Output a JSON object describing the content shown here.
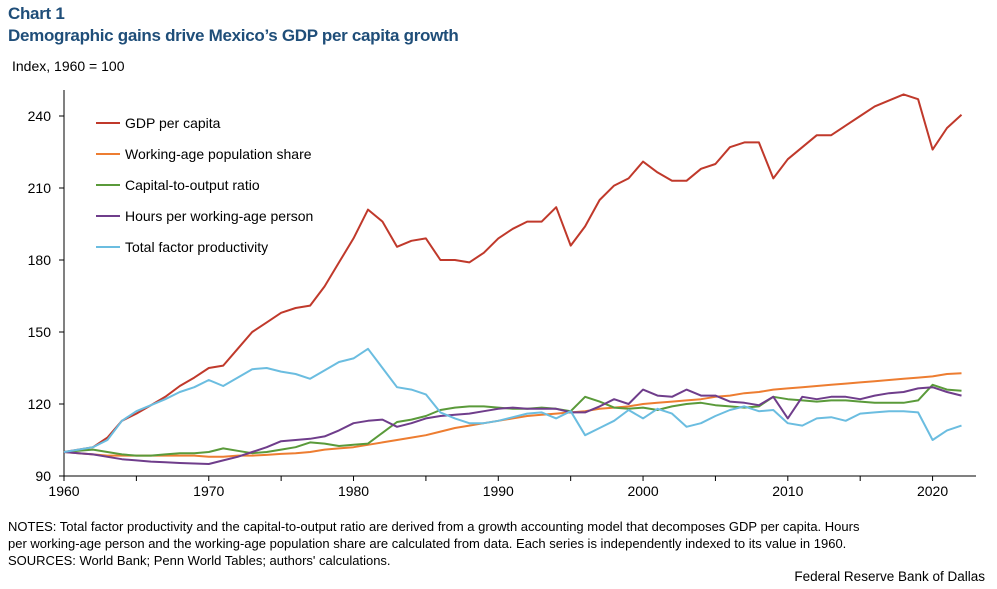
{
  "header": {
    "chart_number": "Chart 1",
    "title": "Demographic gains drive Mexico’s GDP per capita growth",
    "y_unit": "Index,  1960 = 100"
  },
  "footer": {
    "notes_line1": "NOTES: Total factor productivity and the capital-to-output ratio are derived from a growth accounting model that decomposes GDP per capita. Hours",
    "notes_line2": "per working-age person and the working-age population share are calculated from data. Each series is independently indexed to its value in 1960.",
    "sources": "SOURCES: World Bank; Penn World Tables; authors' calculations.",
    "credit": "Federal Reserve Bank of Dallas"
  },
  "chart_data": {
    "type": "line",
    "title": "Demographic gains drive Mexico’s GDP per capita growth",
    "xlabel": "",
    "ylabel": "Index,  1960 = 100",
    "xlim": [
      1960,
      2023
    ],
    "ylim": [
      90,
      250
    ],
    "x_ticks": [
      1960,
      1970,
      1980,
      1990,
      2000,
      2010,
      2020
    ],
    "y_ticks": [
      90,
      120,
      150,
      180,
      210,
      240
    ],
    "legend_position": "top-left",
    "x": [
      1960,
      1961,
      1962,
      1963,
      1964,
      1965,
      1966,
      1967,
      1968,
      1969,
      1970,
      1971,
      1972,
      1973,
      1974,
      1975,
      1976,
      1977,
      1978,
      1979,
      1980,
      1981,
      1982,
      1983,
      1984,
      1985,
      1986,
      1987,
      1988,
      1989,
      1990,
      1991,
      1992,
      1993,
      1994,
      1995,
      1996,
      1997,
      1998,
      1999,
      2000,
      2001,
      2002,
      2003,
      2004,
      2005,
      2006,
      2007,
      2008,
      2009,
      2010,
      2011,
      2012,
      2013,
      2014,
      2015,
      2016,
      2017,
      2018,
      2019,
      2020,
      2021,
      2022
    ],
    "series": [
      {
        "name": "GDP per capita",
        "color": "#c0392b",
        "values": [
          100,
          101,
          102,
          106,
          113,
          116,
          119.5,
          123,
          127.5,
          131,
          135,
          136,
          143,
          150,
          154,
          158,
          160,
          161,
          169,
          179,
          189,
          201,
          196,
          185.5,
          188,
          189,
          180,
          180,
          179,
          183,
          189,
          193,
          196,
          196,
          202,
          186,
          194,
          205,
          211,
          214,
          221,
          216.5,
          213,
          213,
          218,
          220,
          227,
          229,
          229,
          214,
          222,
          227,
          232,
          232,
          236,
          240,
          244,
          246.5,
          249,
          247,
          226,
          235,
          240.5
        ]
      },
      {
        "name": "Working-age population share",
        "color": "#ed7d31",
        "values": [
          100,
          99.5,
          99,
          98.5,
          98.5,
          98.5,
          98.5,
          98.5,
          98.5,
          98.5,
          98,
          98,
          98.5,
          98.5,
          98.8,
          99.2,
          99.5,
          100,
          101,
          101.5,
          102,
          103,
          104,
          105,
          106,
          107,
          108.5,
          110,
          111,
          112,
          113,
          114,
          115,
          115.5,
          116,
          116.5,
          117,
          118,
          118.5,
          119,
          120,
          120.5,
          121,
          121.5,
          122,
          123,
          123.5,
          124.5,
          125,
          126,
          126.5,
          127,
          127.5,
          128,
          128.5,
          129,
          129.5,
          130,
          130.5,
          131,
          131.5,
          132.5,
          132.8
        ]
      },
      {
        "name": "Capital-to-output ratio",
        "color": "#5a9a3a",
        "values": [
          100,
          100.5,
          101,
          100,
          99,
          98.5,
          98.5,
          99,
          99.5,
          99.5,
          100,
          101.5,
          100.5,
          99.5,
          100,
          101,
          102,
          104,
          103.5,
          102.5,
          103,
          103.5,
          108,
          112.5,
          113.5,
          115,
          117.5,
          118.5,
          119,
          119,
          118.5,
          118,
          118,
          118.5,
          118,
          117,
          123,
          121,
          118.5,
          118,
          118.5,
          117.5,
          119,
          120,
          120.5,
          119.5,
          119,
          118.5,
          119,
          123,
          122,
          121.5,
          121,
          121.5,
          121.5,
          121,
          120.5,
          120.5,
          120.5,
          121.5,
          128,
          126,
          125.5
        ]
      },
      {
        "name": "Hours per working-age person",
        "color": "#6f3d8b",
        "values": [
          100,
          99.5,
          99,
          98,
          97,
          96.5,
          96,
          95.7,
          95.4,
          95.2,
          95,
          96.5,
          98,
          100,
          102,
          104.5,
          105,
          105.5,
          106.5,
          109,
          112,
          113,
          113.5,
          110.5,
          112,
          114,
          115,
          115.5,
          116,
          117,
          118,
          118.5,
          118,
          118,
          118,
          116.5,
          116.5,
          119,
          122,
          120,
          126,
          123.5,
          123,
          126,
          123.5,
          123.5,
          121,
          120.5,
          119.5,
          123,
          114,
          123,
          122,
          123,
          123,
          122,
          123.5,
          124.5,
          125,
          126.5,
          127,
          125,
          123.5
        ]
      },
      {
        "name": "Total factor productivity",
        "color": "#6bbde0",
        "values": [
          100,
          101,
          102,
          105,
          113,
          117,
          119.5,
          122,
          125,
          127,
          130,
          127.5,
          131,
          134.5,
          135,
          133.5,
          132.5,
          130.5,
          134,
          137.5,
          139,
          143,
          135,
          127,
          126,
          124,
          116.5,
          114,
          112,
          112,
          113,
          114.5,
          116,
          116.5,
          114,
          117,
          107,
          110,
          113,
          117.5,
          114,
          118,
          116,
          110.5,
          112,
          115,
          117.5,
          119,
          117,
          117.5,
          112,
          111,
          114,
          114.5,
          113,
          116,
          116.5,
          117,
          117,
          116.5,
          105,
          109,
          111
        ]
      }
    ]
  }
}
